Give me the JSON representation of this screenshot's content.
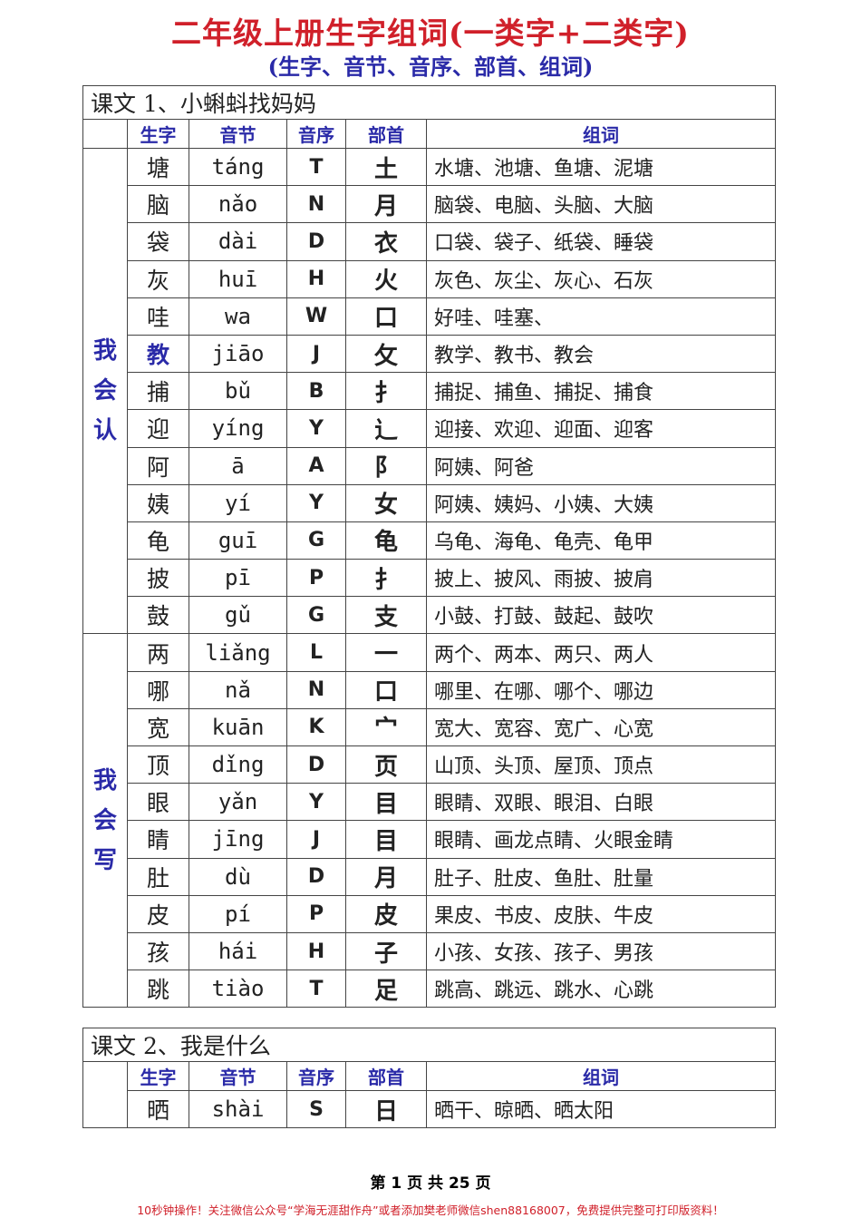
{
  "title": "二年级上册生字组词(一类字+二类字)",
  "subtitle": "(生字、音节、音序、部首、组词)",
  "headers": {
    "char": "生字",
    "pinyin": "音节",
    "order": "音序",
    "radical": "部首",
    "words": "组词"
  },
  "lesson1": {
    "title": "课文 1、小蝌蚪找妈妈",
    "group1_label": "我\n会\n认",
    "group2_label": "我\n会\n写",
    "group1": [
      {
        "char": "塘",
        "pinyin": "táng",
        "order": "T",
        "radical": "土",
        "words": "水塘、池塘、鱼塘、泥塘"
      },
      {
        "char": "脑",
        "pinyin": "nǎo",
        "order": "N",
        "radical": "月",
        "words": "脑袋、电脑、头脑、大脑"
      },
      {
        "char": "袋",
        "pinyin": "dài",
        "order": "D",
        "radical": "衣",
        "words": "口袋、袋子、纸袋、睡袋"
      },
      {
        "char": "灰",
        "pinyin": "huī",
        "order": "H",
        "radical": "火",
        "words": "灰色、灰尘、灰心、石灰"
      },
      {
        "char": "哇",
        "pinyin": "wa",
        "order": "W",
        "radical": "口",
        "words": "好哇、哇塞、"
      },
      {
        "char": "教",
        "pinyin": "jiāo",
        "order": "J",
        "radical": "攵",
        "words": "教学、教书、教会",
        "highlight": true
      },
      {
        "char": "捕",
        "pinyin": "bǔ",
        "order": "B",
        "radical": "扌",
        "words": "捕捉、捕鱼、捕捉、捕食"
      },
      {
        "char": "迎",
        "pinyin": "yíng",
        "order": "Y",
        "radical": "辶",
        "words": "迎接、欢迎、迎面、迎客"
      },
      {
        "char": "阿",
        "pinyin": "ā",
        "order": "A",
        "radical": "阝",
        "words": "阿姨、阿爸"
      },
      {
        "char": "姨",
        "pinyin": "yí",
        "order": "Y",
        "radical": "女",
        "words": "阿姨、姨妈、小姨、大姨"
      },
      {
        "char": "龟",
        "pinyin": "guī",
        "order": "G",
        "radical": "龟",
        "words": "乌龟、海龟、龟壳、龟甲"
      },
      {
        "char": "披",
        "pinyin": "pī",
        "order": "P",
        "radical": "扌",
        "words": "披上、披风、雨披、披肩"
      },
      {
        "char": "鼓",
        "pinyin": "gǔ",
        "order": "G",
        "radical": "支",
        "words": "小鼓、打鼓、鼓起、鼓吹"
      }
    ],
    "group2": [
      {
        "char": "两",
        "pinyin": "liǎng",
        "order": "L",
        "radical": "一",
        "words": "两个、两本、两只、两人"
      },
      {
        "char": "哪",
        "pinyin": "nǎ",
        "order": "N",
        "radical": "口",
        "words": "哪里、在哪、哪个、哪边"
      },
      {
        "char": "宽",
        "pinyin": "kuān",
        "order": "K",
        "radical": "宀",
        "words": "宽大、宽容、宽广、心宽"
      },
      {
        "char": "顶",
        "pinyin": "dǐng",
        "order": "D",
        "radical": "页",
        "words": "山顶、头顶、屋顶、顶点"
      },
      {
        "char": "眼",
        "pinyin": "yǎn",
        "order": "Y",
        "radical": "目",
        "words": "眼睛、双眼、眼泪、白眼"
      },
      {
        "char": "睛",
        "pinyin": "jīng",
        "order": "J",
        "radical": "目",
        "words": "眼睛、画龙点睛、火眼金睛"
      },
      {
        "char": "肚",
        "pinyin": "dù",
        "order": "D",
        "radical": "月",
        "words": "肚子、肚皮、鱼肚、肚量"
      },
      {
        "char": "皮",
        "pinyin": "pí",
        "order": "P",
        "radical": "皮",
        "words": "果皮、书皮、皮肤、牛皮"
      },
      {
        "char": "孩",
        "pinyin": "hái",
        "order": "H",
        "radical": "子",
        "words": "小孩、女孩、孩子、男孩"
      },
      {
        "char": "跳",
        "pinyin": "tiào",
        "order": "T",
        "radical": "足",
        "words": "跳高、跳远、跳水、心跳"
      }
    ]
  },
  "lesson2": {
    "title": "课文 2、我是什么",
    "rows": [
      {
        "char": "晒",
        "pinyin": "shài",
        "order": "S",
        "radical": "日",
        "words": "晒干、晾晒、晒太阳"
      }
    ]
  },
  "page_indicator": "第 1 页 共 25 页",
  "footer_note": "10秒钟操作！关注微信公众号“学海无涯甜作舟”或者添加樊老师微信shen88168007，免费提供完整可打印版资料！"
}
